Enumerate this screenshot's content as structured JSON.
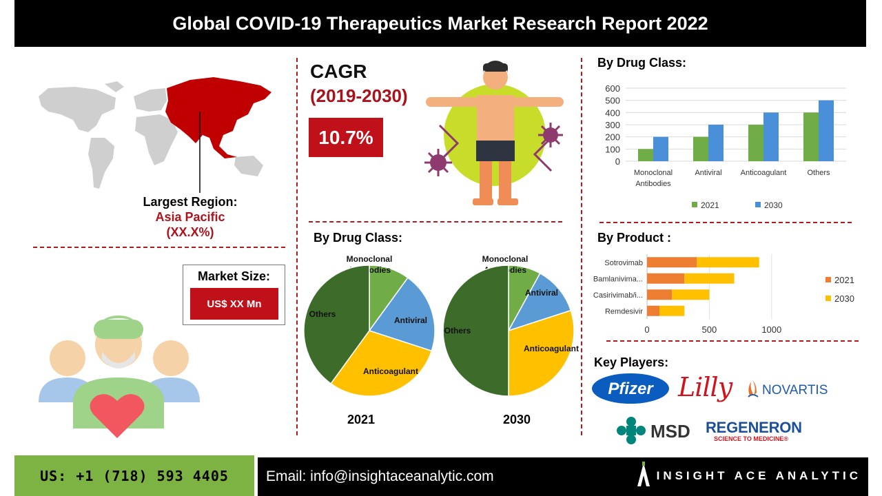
{
  "header": {
    "title": "Global COVID-19 Therapeutics Market Research Report 2022"
  },
  "region": {
    "label": "Largest Region:",
    "name": "Asia Pacific",
    "share": "(XX.X%)"
  },
  "market_size": {
    "title": "Market Size:",
    "value": "US$ XX Mn"
  },
  "cagr": {
    "title": "CAGR",
    "period": "(2019-2030)",
    "value": "10.7%"
  },
  "sections": {
    "drug_class_bar": "By Drug Class:",
    "drug_class_pie": "By Drug Class:",
    "product": "By Product :",
    "players": "Key Players:"
  },
  "players": {
    "pfizer": "Pfizer",
    "lilly": "Lilly",
    "novartis": "NOVARTIS",
    "msd": "MSD",
    "regeneron": "REGENERON",
    "regeneron_tagline": "SCIENCE TO MEDICINE®"
  },
  "footer": {
    "phone": "US: +1 (718) 593 4405",
    "email": "Email: info@insightaceanalytic.com",
    "brand": "INSIGHT ACE ANALYTIC"
  },
  "colors": {
    "accent_red": "#c0101a",
    "green_2021": "#70ad47",
    "blue_2030": "#4a90d9",
    "orange_2021": "#ed7d31",
    "yellow_2030": "#ffc000"
  },
  "chart_data": [
    {
      "id": "drug_class_bar",
      "type": "bar",
      "title": "By Drug Class:",
      "categories": [
        "Monoclonal Antibodies",
        "Antiviral",
        "Anticoagulant",
        "Others"
      ],
      "category_lines": [
        [
          "Monoclonal",
          "Antibodies"
        ],
        [
          "Antiviral"
        ],
        [
          "Anticoagulant"
        ],
        [
          "Others"
        ]
      ],
      "series": [
        {
          "name": "2021",
          "color": "#70ad47",
          "values": [
            100,
            200,
            300,
            400
          ]
        },
        {
          "name": "2030",
          "color": "#4a90d9",
          "values": [
            200,
            300,
            400,
            500
          ]
        }
      ],
      "ylim": [
        0,
        600
      ],
      "yticks": [
        0,
        100,
        200,
        300,
        400,
        500,
        600
      ],
      "legend": "bottom",
      "grid": true
    },
    {
      "id": "product_bar",
      "type": "bar",
      "orientation": "horizontal",
      "stacked": true,
      "title": "By Product :",
      "categories": [
        "Sotrovimab",
        "Bamlanivima...",
        "Casirivimab/i...",
        "Remdesivir"
      ],
      "series": [
        {
          "name": "2021",
          "color": "#ed7d31",
          "values": [
            400,
            300,
            200,
            100
          ]
        },
        {
          "name": "2030",
          "color": "#ffc000",
          "values": [
            500,
            400,
            300,
            200
          ]
        }
      ],
      "xlim": [
        0,
        1250
      ],
      "xticks": [
        0,
        500,
        1000
      ],
      "legend": "right",
      "grid": true
    },
    {
      "id": "pie_2021",
      "type": "pie",
      "title": "2021",
      "slices": [
        {
          "label": "Monoclonal Antibodies",
          "lines": [
            "Monoclonal",
            "Antibodies"
          ],
          "value": 10,
          "color": "#70ad47"
        },
        {
          "label": "Antiviral",
          "lines": [
            "Antiviral"
          ],
          "value": 20,
          "color": "#5b9bd5"
        },
        {
          "label": "Anticoagulant",
          "lines": [
            "Anticoagulant"
          ],
          "value": 30,
          "color": "#ffc000"
        },
        {
          "label": "Others",
          "lines": [
            "Others"
          ],
          "value": 40,
          "color": "#3d6b2a"
        }
      ]
    },
    {
      "id": "pie_2030",
      "type": "pie",
      "title": "2030",
      "slices": [
        {
          "label": "Monoclonal Antibodies",
          "lines": [
            "Monoclonal",
            "Antibodies"
          ],
          "value": 8,
          "color": "#70ad47"
        },
        {
          "label": "Antiviral",
          "lines": [
            "Antiviral"
          ],
          "value": 12,
          "color": "#5b9bd5"
        },
        {
          "label": "Anticoagulant",
          "lines": [
            "Anticoagulant"
          ],
          "value": 30,
          "color": "#ffc000"
        },
        {
          "label": "Others",
          "lines": [
            "Others"
          ],
          "value": 50,
          "color": "#3d6b2a"
        }
      ]
    }
  ]
}
